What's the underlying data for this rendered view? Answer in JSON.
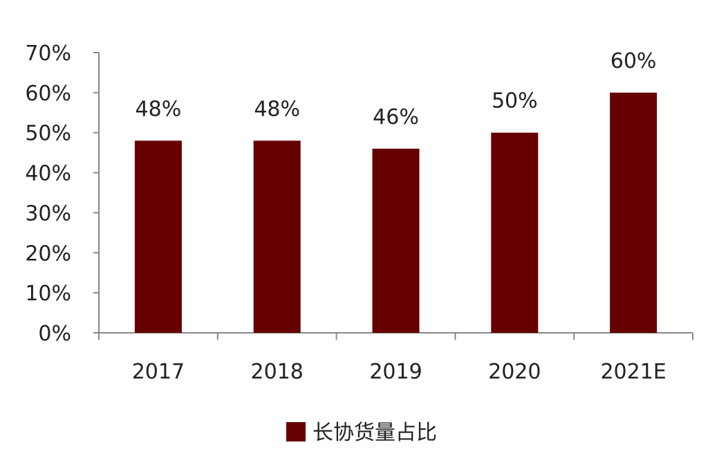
{
  "chart_data": {
    "type": "bar",
    "categories": [
      "2017",
      "2018",
      "2019",
      "2020",
      "2021E"
    ],
    "series": [
      {
        "name": "长协货量占比",
        "values": [
          48,
          48,
          46,
          50,
          60
        ],
        "data_labels": [
          "48%",
          "48%",
          "46%",
          "50%",
          "60%"
        ]
      }
    ],
    "title": "",
    "xlabel": "",
    "ylabel": "",
    "ylim": [
      0,
      70
    ],
    "y_ticks": [
      0,
      10,
      20,
      30,
      40,
      50,
      60,
      70
    ],
    "y_tick_labels": [
      "0%",
      "10%",
      "20%",
      "30%",
      "40%",
      "50%",
      "60%",
      "70%"
    ],
    "grid": false,
    "legend_position": "bottom-center",
    "colors": {
      "bar": "#660000",
      "axis": "#888888",
      "text": "#222222"
    }
  }
}
